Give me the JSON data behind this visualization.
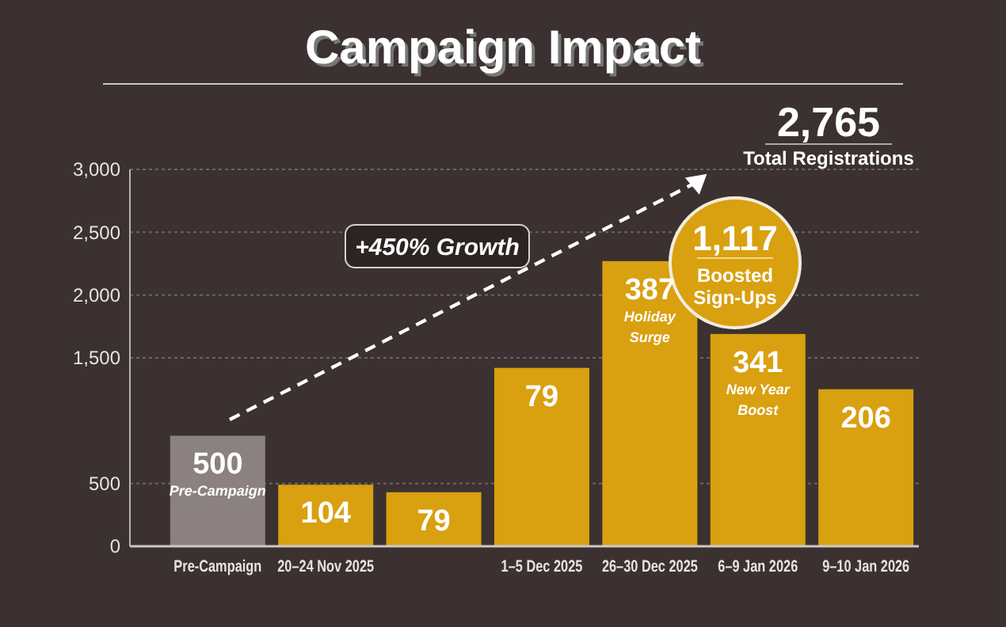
{
  "chart_data": {
    "type": "bar",
    "title": "Campaign Impact",
    "categories": [
      "Pre-Campaign",
      "20–24 Nov 2025",
      null,
      "1–5 Dec 2025",
      "26–30 Dec 2025",
      "6–9 Jan 2026",
      "9–10 Jan 2026"
    ],
    "values": [
      880,
      490,
      430,
      1420,
      2270,
      1690,
      1250
    ],
    "colors": [
      "#8a8180",
      "#d9a010",
      "#d9a010",
      "#d9a010",
      "#d9a010",
      "#d9a010",
      "#d9a010"
    ],
    "ylim": [
      0,
      3000
    ],
    "yticks": [
      {
        "value": 0,
        "label": "0"
      },
      {
        "value": 500,
        "label": "500"
      },
      {
        "value": 1500,
        "label": "1,500"
      },
      {
        "value": 2000,
        "label": "2,000"
      },
      {
        "value": 2500,
        "label": "2,500"
      },
      {
        "value": 3000,
        "label": "3,000"
      }
    ],
    "grid": "y",
    "annotations": [
      "+450% Growth",
      "2,765",
      "Total Registrations",
      "1,117",
      "Boosted Sign-Ups",
      "Pre-Campaign",
      "Holiday Surge",
      "New Year Boost",
      "500",
      "104",
      "79",
      "79",
      "387",
      "341",
      "206"
    ]
  }
}
